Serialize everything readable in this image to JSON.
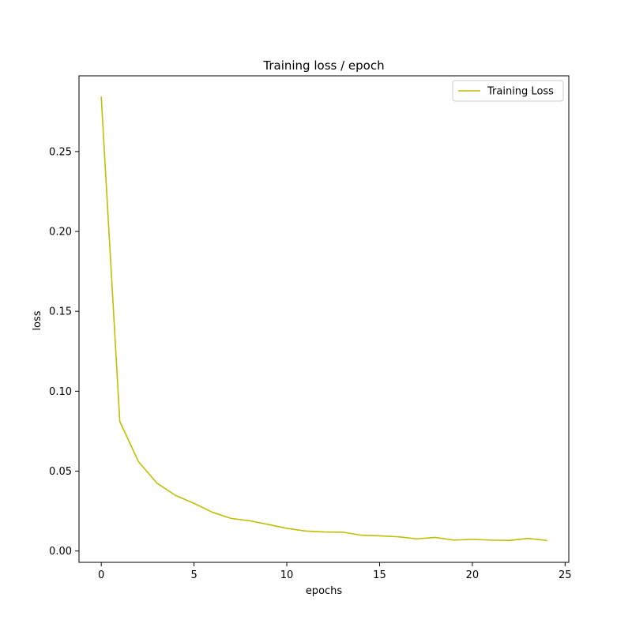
{
  "chart_data": {
    "type": "line",
    "title": "Training loss / epoch",
    "xlabel": "epochs",
    "ylabel": "loss",
    "xlim": [
      -1.2,
      25.2
    ],
    "ylim": [
      -0.0071,
      0.2974
    ],
    "x_ticks": [
      0,
      5,
      10,
      15,
      20,
      25
    ],
    "x_tick_labels": [
      "0",
      "5",
      "10",
      "15",
      "20",
      "25"
    ],
    "y_ticks": [
      0.0,
      0.05,
      0.1,
      0.15,
      0.2,
      0.25
    ],
    "y_tick_labels": [
      "0.00",
      "0.05",
      "0.10",
      "0.15",
      "0.20",
      "0.25"
    ],
    "grid": false,
    "legend_position": "top-right",
    "series": [
      {
        "name": "Training Loss",
        "color": "#bfbf00",
        "x": [
          0,
          1,
          2,
          3,
          4,
          5,
          6,
          7,
          8,
          9,
          10,
          11,
          12,
          13,
          14,
          15,
          16,
          17,
          18,
          19,
          20,
          21,
          22,
          23,
          24
        ],
        "values": [
          0.284,
          0.081,
          0.056,
          0.0425,
          0.0348,
          0.0298,
          0.0242,
          0.0204,
          0.0189,
          0.0166,
          0.0142,
          0.0125,
          0.0119,
          0.0118,
          0.0099,
          0.0095,
          0.0089,
          0.0076,
          0.0085,
          0.0068,
          0.0073,
          0.0068,
          0.0066,
          0.0079,
          0.0066
        ]
      }
    ]
  }
}
